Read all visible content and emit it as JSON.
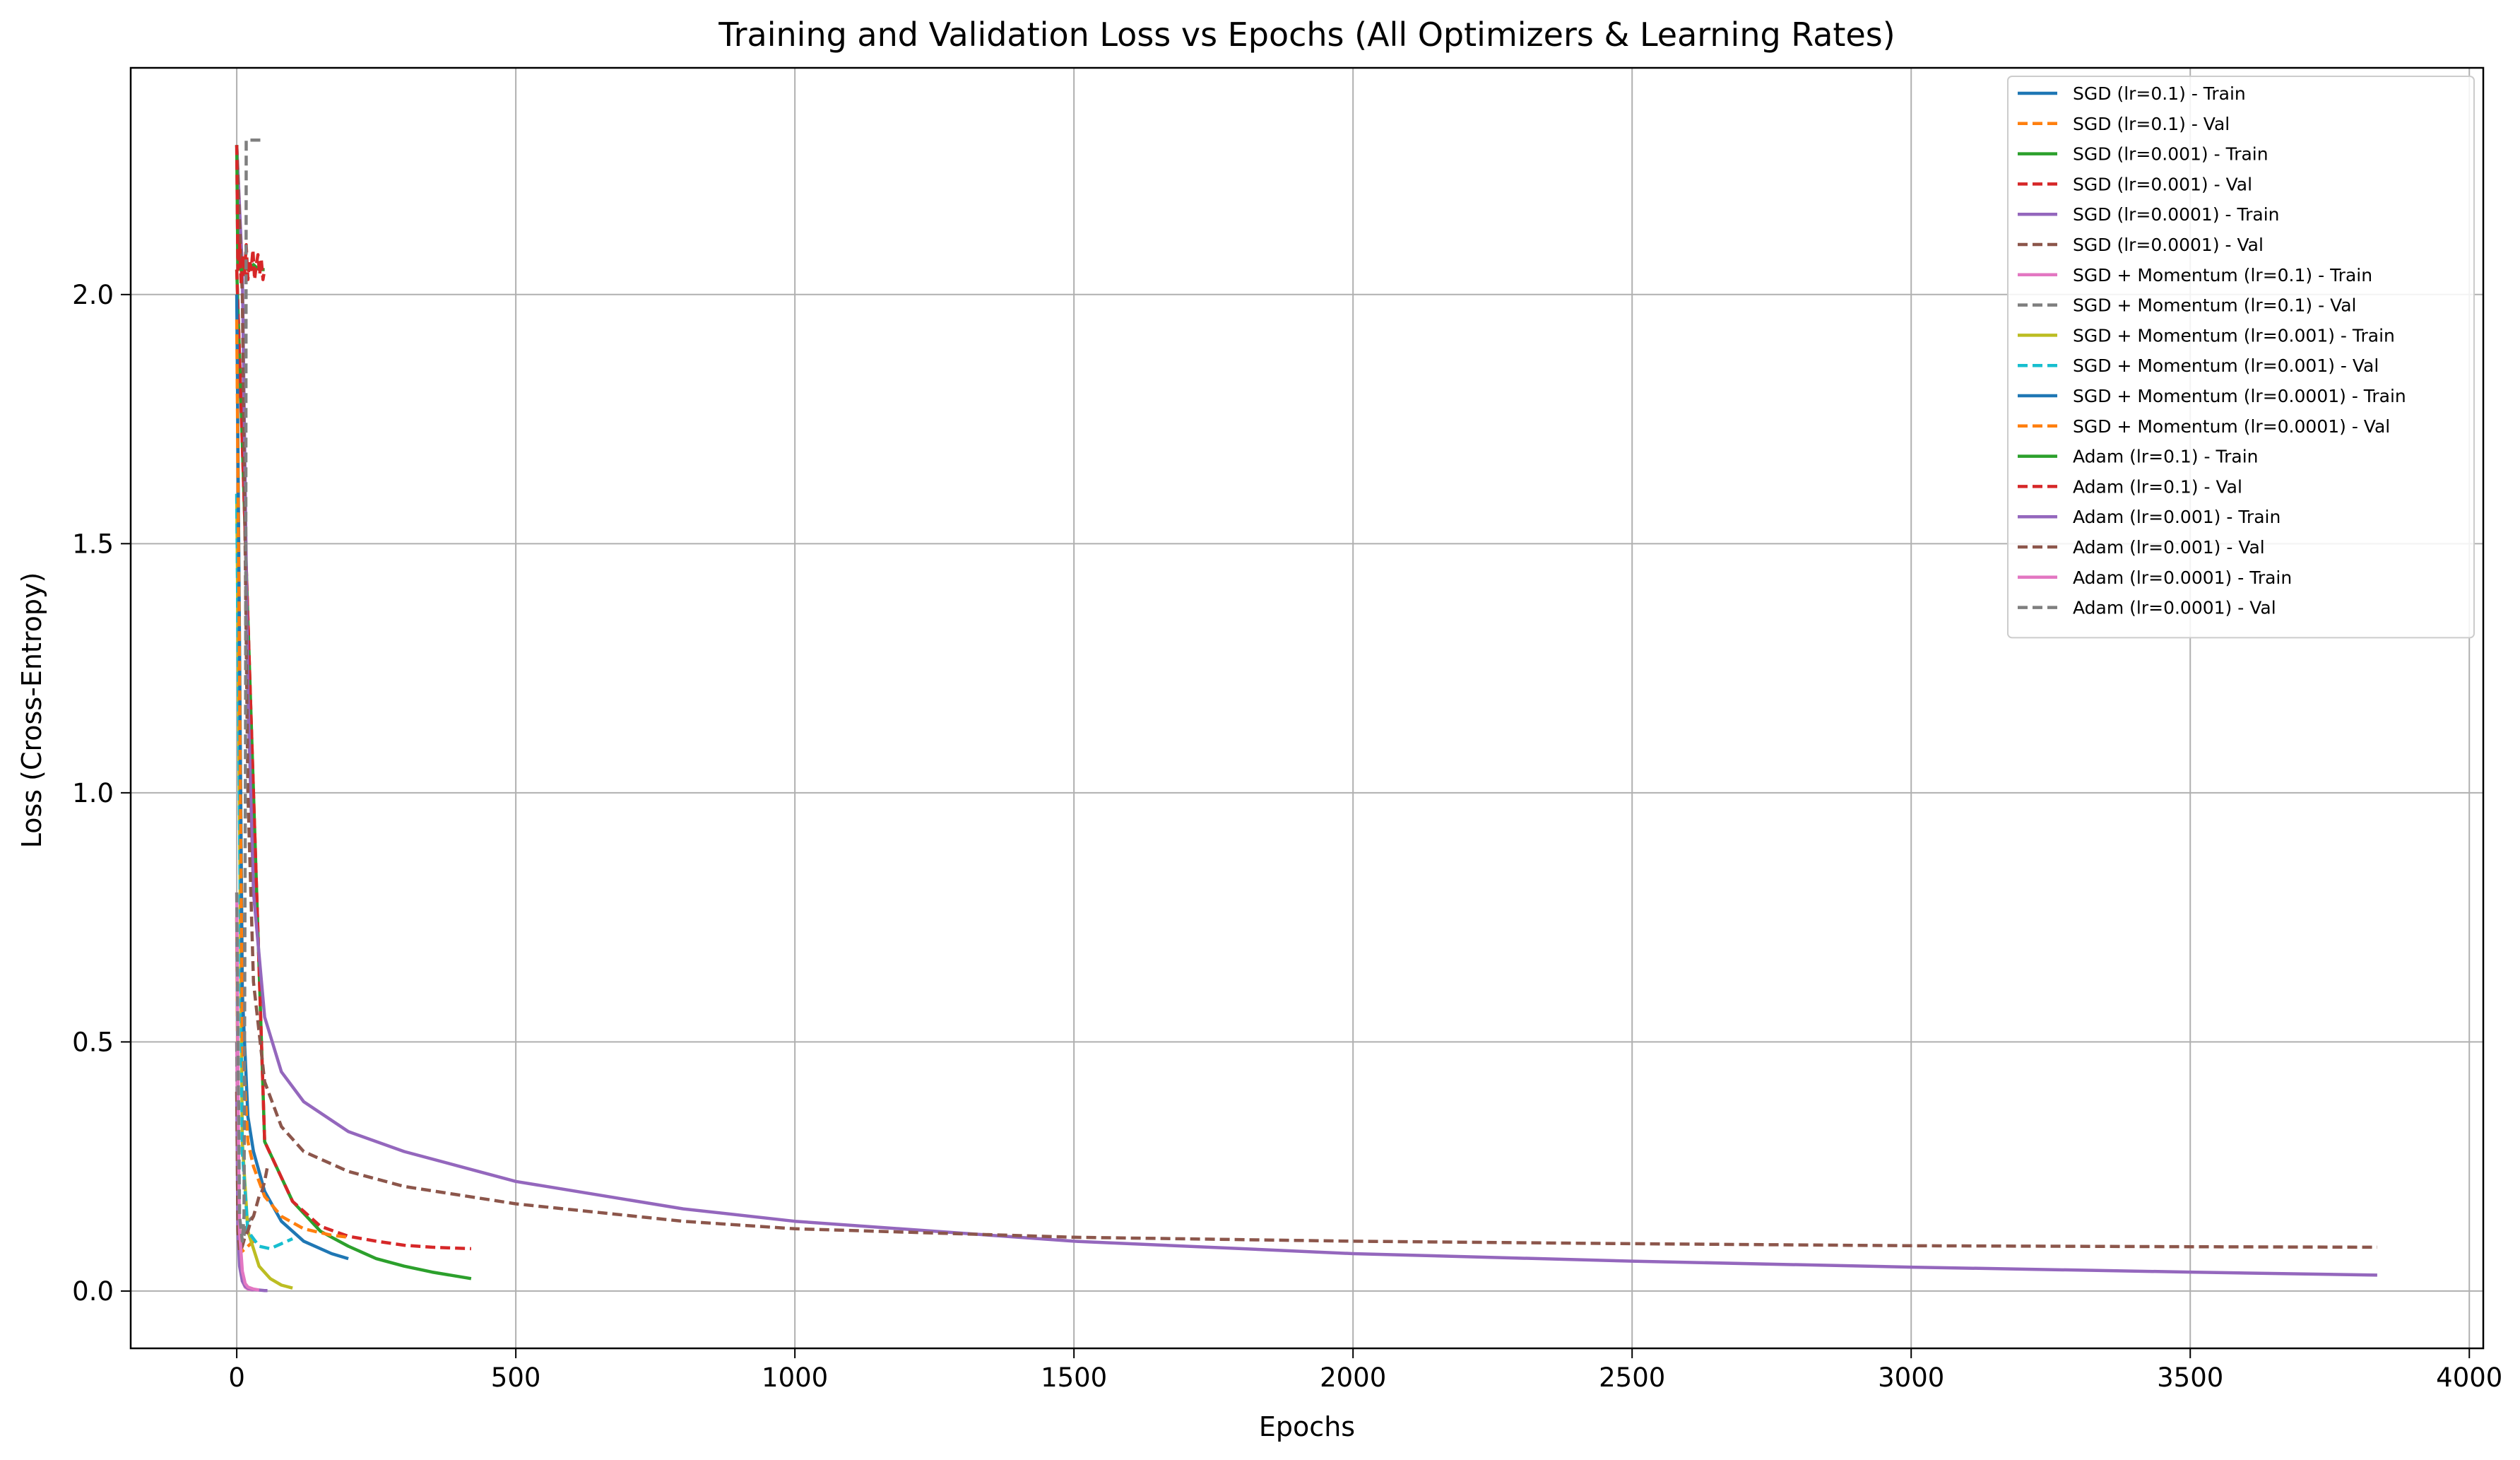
{
  "chart_data": {
    "type": "line",
    "title": "Training and Validation Loss vs Epochs (All Optimizers & Learning Rates)",
    "xlabel": "Epochs",
    "ylabel": "Loss (Cross-Entropy)",
    "xlim": [
      -190,
      4025
    ],
    "ylim": [
      -0.115,
      2.455
    ],
    "xticks": [
      0,
      500,
      1000,
      1500,
      2000,
      2500,
      3000,
      3500,
      4000
    ],
    "xtick_labels": [
      "0",
      "500",
      "1000",
      "1500",
      "2000",
      "2500",
      "3000",
      "3500",
      "4000"
    ],
    "yticks": [
      0.0,
      0.5,
      1.0,
      1.5,
      2.0
    ],
    "ytick_labels": [
      "0.0",
      "0.5",
      "1.0",
      "1.5",
      "2.0"
    ],
    "grid": true,
    "legend_position": "top-right",
    "series": [
      {
        "name": "SGD (lr=0.1) - Train",
        "color": "#1f77b4",
        "dash": "solid",
        "x": [
          0,
          3,
          6,
          10,
          15,
          20,
          25,
          30
        ],
        "y": [
          0.75,
          0.22,
          0.08,
          0.03,
          0.01,
          0.005,
          0.003,
          0.002
        ]
      },
      {
        "name": "SGD (lr=0.1) - Val",
        "color": "#ff7f0e",
        "dash": "dashed",
        "x": [
          0,
          3,
          6,
          10,
          15,
          20,
          25,
          30
        ],
        "y": [
          0.75,
          0.2,
          0.1,
          0.08,
          0.085,
          0.09,
          0.095,
          0.1
        ]
      },
      {
        "name": "SGD (lr=0.001) - Train",
        "color": "#2ca02c",
        "dash": "solid",
        "x": [
          0,
          50,
          100,
          150,
          200,
          250,
          300,
          350,
          420
        ],
        "y": [
          2.05,
          0.3,
          0.18,
          0.12,
          0.09,
          0.065,
          0.05,
          0.038,
          0.025
        ]
      },
      {
        "name": "SGD (lr=0.001) - Val",
        "color": "#d62728",
        "dash": "dashed",
        "x": [
          0,
          50,
          100,
          150,
          200,
          250,
          300,
          350,
          420
        ],
        "y": [
          2.05,
          0.3,
          0.18,
          0.13,
          0.11,
          0.1,
          0.092,
          0.088,
          0.085
        ]
      },
      {
        "name": "SGD (lr=0.0001) - Train",
        "color": "#9467bd",
        "dash": "solid",
        "x": [
          0,
          10,
          20,
          30,
          50,
          80,
          120,
          200,
          300,
          500,
          800,
          1000,
          1500,
          2000,
          2500,
          3000,
          3500,
          3835
        ],
        "y": [
          2.3,
          2.05,
          1.2,
          0.8,
          0.55,
          0.44,
          0.38,
          0.32,
          0.28,
          0.22,
          0.165,
          0.14,
          0.1,
          0.075,
          0.06,
          0.048,
          0.038,
          0.032
        ]
      },
      {
        "name": "SGD (lr=0.0001) - Val",
        "color": "#8c564b",
        "dash": "dashed",
        "x": [
          0,
          10,
          20,
          30,
          50,
          80,
          120,
          200,
          300,
          500,
          800,
          1000,
          1500,
          2000,
          2500,
          3000,
          3500,
          3835
        ],
        "y": [
          2.3,
          2.0,
          1.0,
          0.62,
          0.42,
          0.33,
          0.28,
          0.24,
          0.21,
          0.175,
          0.14,
          0.125,
          0.108,
          0.1,
          0.095,
          0.091,
          0.089,
          0.088
        ]
      },
      {
        "name": "SGD + Momentum (lr=0.1) - Train",
        "color": "#e377c2",
        "dash": "solid",
        "x": [
          0,
          2,
          5,
          10,
          15,
          20,
          30
        ],
        "y": [
          0.5,
          0.2,
          0.08,
          0.02,
          0.008,
          0.004,
          0.002
        ]
      },
      {
        "name": "SGD + Momentum (lr=0.1) - Val",
        "color": "#7f7f7f",
        "dash": "dashed",
        "x": [
          0,
          2,
          5,
          10,
          15,
          20,
          30
        ],
        "y": [
          0.5,
          0.18,
          0.1,
          0.1,
          0.12,
          0.14,
          0.15
        ]
      },
      {
        "name": "SGD + Momentum (lr=0.001) - Train",
        "color": "#bcbd22",
        "dash": "solid",
        "x": [
          0,
          10,
          20,
          40,
          60,
          80,
          100
        ],
        "y": [
          1.6,
          0.3,
          0.12,
          0.05,
          0.025,
          0.012,
          0.006
        ]
      },
      {
        "name": "SGD + Momentum (lr=0.001) - Val",
        "color": "#17becf",
        "dash": "dashed",
        "x": [
          0,
          10,
          20,
          40,
          60,
          80,
          100
        ],
        "y": [
          1.6,
          0.28,
          0.12,
          0.09,
          0.085,
          0.095,
          0.105
        ]
      },
      {
        "name": "SGD + Momentum (lr=0.0001) - Train",
        "color": "#1f77b4",
        "dash": "solid",
        "x": [
          0,
          10,
          20,
          30,
          50,
          80,
          120,
          170,
          200
        ],
        "y": [
          2.0,
          0.6,
          0.35,
          0.28,
          0.2,
          0.14,
          0.1,
          0.075,
          0.065
        ]
      },
      {
        "name": "SGD + Momentum (lr=0.0001) - Val",
        "color": "#ff7f0e",
        "dash": "dashed",
        "x": [
          0,
          10,
          20,
          30,
          50,
          80,
          120,
          170,
          200
        ],
        "y": [
          1.95,
          0.5,
          0.3,
          0.25,
          0.19,
          0.15,
          0.125,
          0.112,
          0.108
        ]
      },
      {
        "name": "Adam (lr=0.1) - Train",
        "color": "#2ca02c",
        "dash": "solid",
        "x": [
          0,
          2,
          5,
          10,
          15,
          20,
          30,
          40,
          50
        ],
        "y": [
          2.3,
          2.05,
          2.06,
          2.04,
          2.07,
          2.05,
          2.06,
          2.05,
          2.05
        ]
      },
      {
        "name": "Adam (lr=0.1) - Val",
        "color": "#d62728",
        "dash": "dashed",
        "x": [
          0,
          2,
          5,
          8,
          11,
          14,
          17,
          20,
          23,
          26,
          29,
          32,
          35,
          38,
          41,
          44,
          47,
          50
        ],
        "y": [
          2.3,
          2.05,
          2.1,
          2.02,
          2.08,
          2.04,
          2.1,
          2.03,
          2.07,
          2.05,
          2.09,
          2.03,
          2.06,
          2.08,
          2.04,
          2.07,
          2.03,
          2.05
        ]
      },
      {
        "name": "Adam (lr=0.001) - Train",
        "color": "#9467bd",
        "dash": "solid",
        "x": [
          0,
          2,
          5,
          10,
          15,
          20,
          30,
          40,
          50,
          55
        ],
        "y": [
          0.4,
          0.12,
          0.05,
          0.02,
          0.01,
          0.006,
          0.003,
          0.002,
          0.001,
          0.001
        ]
      },
      {
        "name": "Adam (lr=0.001) - Val",
        "color": "#8c564b",
        "dash": "dashed",
        "x": [
          0,
          2,
          5,
          10,
          15,
          20,
          25,
          30,
          35,
          40,
          45,
          50,
          55
        ],
        "y": [
          0.4,
          0.12,
          0.08,
          0.09,
          0.11,
          0.12,
          0.14,
          0.15,
          0.17,
          0.19,
          0.2,
          0.22,
          0.25
        ]
      },
      {
        "name": "Adam (lr=0.0001) - Train",
        "color": "#e377c2",
        "dash": "solid",
        "x": [
          0,
          3,
          5,
          10,
          15,
          20,
          30,
          40
        ],
        "y": [
          0.8,
          0.3,
          0.12,
          0.04,
          0.015,
          0.008,
          0.004,
          0.002
        ]
      },
      {
        "name": "Adam (lr=0.0001) - Val",
        "color": "#7f7f7f",
        "dash": "dashed",
        "x": [
          0,
          5,
          10,
          13,
          16,
          17,
          20,
          25,
          30,
          35,
          40,
          45,
          50
        ],
        "y": [
          0.8,
          0.15,
          0.1,
          0.15,
          1.2,
          2.31,
          2.31,
          2.31,
          2.31,
          2.31,
          2.31,
          2.31,
          2.31
        ]
      }
    ]
  }
}
